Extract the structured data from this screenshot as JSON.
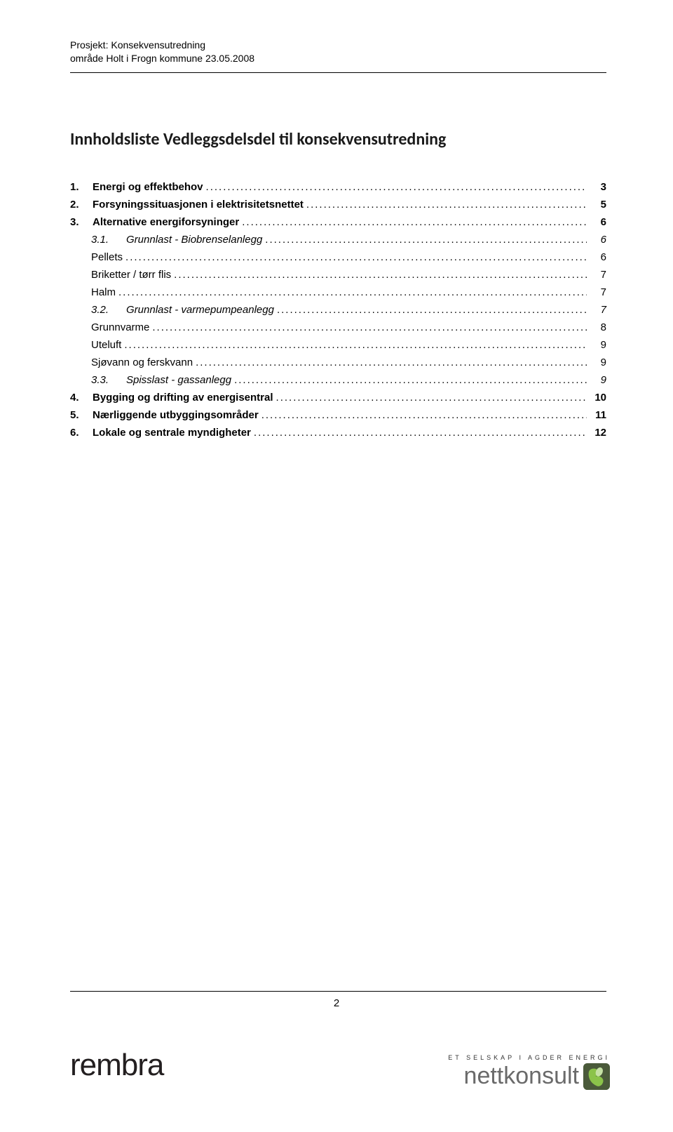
{
  "header": {
    "line1": "Prosjekt: Konsekvensutredning",
    "line2": "område Holt i Frogn kommune 23.05.2008"
  },
  "title": "Innholdsliste  Vedleggsdelsdel til konsekvensutredning",
  "toc": [
    {
      "num": "1.",
      "label": "Energi og effektbehov",
      "page": "3",
      "level": 0,
      "style": "bold"
    },
    {
      "num": "2.",
      "label": "Forsyningssituasjonen i elektrisitetsnettet",
      "page": "5",
      "level": 0,
      "style": "bold"
    },
    {
      "num": "3.",
      "label": "Alternative energiforsyninger",
      "page": "6",
      "level": 0,
      "style": "bold"
    },
    {
      "num": "3.1.",
      "label": "Grunnlast - Biobrenselanlegg",
      "page": "6",
      "level": 1,
      "style": "italic"
    },
    {
      "num": "",
      "label": "Pellets",
      "page": "6",
      "level": 2,
      "style": "normal"
    },
    {
      "num": "",
      "label": "Briketter / tørr flis",
      "page": "7",
      "level": 2,
      "style": "normal"
    },
    {
      "num": "",
      "label": "Halm",
      "page": "7",
      "level": 2,
      "style": "normal"
    },
    {
      "num": "3.2.",
      "label": "Grunnlast - varmepumpeanlegg",
      "page": "7",
      "level": 1,
      "style": "italic"
    },
    {
      "num": "",
      "label": "Grunnvarme",
      "page": "8",
      "level": 2,
      "style": "normal"
    },
    {
      "num": "",
      "label": "Uteluft",
      "page": "9",
      "level": 2,
      "style": "normal"
    },
    {
      "num": "",
      "label": "Sjøvann og ferskvann",
      "page": "9",
      "level": 2,
      "style": "normal"
    },
    {
      "num": "3.3.",
      "label": "Spisslast - gassanlegg",
      "page": "9",
      "level": 1,
      "style": "italic"
    },
    {
      "num": "4.",
      "label": "Bygging og drifting av energisentral",
      "page": "10",
      "level": 0,
      "style": "bold"
    },
    {
      "num": "5.",
      "label": "Nærliggende utbyggingsområder",
      "page": "11",
      "level": 0,
      "style": "bold"
    },
    {
      "num": "6.",
      "label": "Lokale og sentrale myndigheter",
      "page": "12",
      "level": 0,
      "style": "bold"
    }
  ],
  "pageNumber": "2",
  "logoLeft": "rembra",
  "logoRight": {
    "tagline": "ET SELSKAP I AGDER ENERGI",
    "name": "nettkonsult",
    "iconColors": {
      "bgDark": "#4a5a3a",
      "swirl": "#8bc34a",
      "leaf": "#c5e1a5"
    }
  },
  "colors": {
    "text": "#000000",
    "background": "#ffffff",
    "logoLeftColor": "#231f20",
    "logoRightColor": "#6a6a6a"
  },
  "typography": {
    "bodyFontSize": 15,
    "headerFontSize": 14,
    "titleFontSize": 24
  },
  "dots": ".................................................................................................................................................................................."
}
